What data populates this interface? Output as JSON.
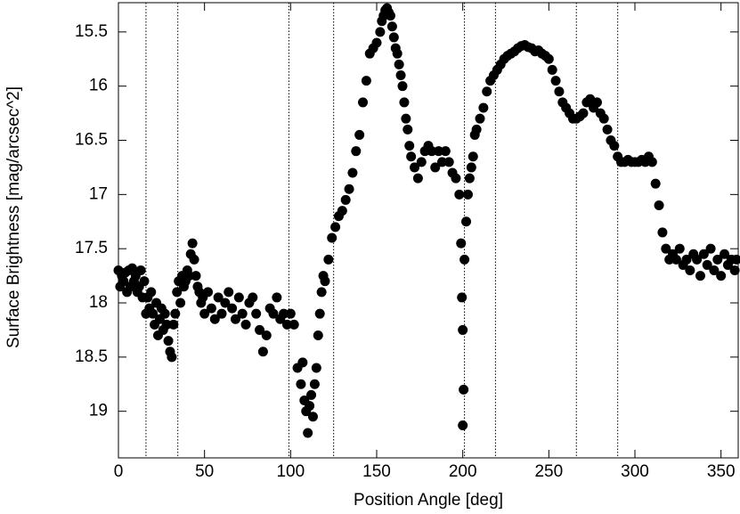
{
  "chart_data": {
    "type": "scatter",
    "xlabel": "Position Angle [deg]",
    "ylabel": "Surface Brightness [mag/arcsec^2]",
    "color": "#000000",
    "xlim": [
      0,
      360
    ],
    "ylim": [
      19.43,
      15.23
    ],
    "xticks": [
      0,
      50,
      100,
      150,
      200,
      250,
      300,
      350
    ],
    "yticks": [
      15.5,
      16,
      16.5,
      17,
      17.5,
      18,
      18.5,
      19
    ],
    "vlines": [
      16,
      34.5,
      99,
      125,
      201,
      219,
      266,
      290
    ],
    "x": [
      0,
      1,
      2,
      3,
      4,
      5,
      6,
      7,
      8,
      9,
      10,
      11,
      12,
      13,
      14,
      15,
      16,
      17,
      18,
      19,
      20,
      21,
      22,
      23,
      24,
      25,
      26,
      27,
      28,
      29,
      30,
      31,
      32,
      33,
      34,
      35,
      36,
      37,
      38,
      39,
      40,
      41,
      42,
      43,
      44,
      45,
      46,
      47,
      48,
      49,
      50,
      52,
      54,
      56,
      58,
      60,
      62,
      64,
      66,
      68,
      70,
      72,
      74,
      76,
      78,
      80,
      82,
      84,
      86,
      88,
      90,
      92,
      94,
      96,
      98,
      100,
      102,
      104,
      106,
      107,
      108,
      109,
      110,
      111,
      112,
      113,
      114,
      115,
      116,
      117,
      118,
      119,
      120,
      122,
      124,
      126,
      128,
      130,
      132,
      134,
      136,
      138,
      140,
      142,
      144,
      146,
      148,
      150,
      152,
      153,
      154,
      155,
      156,
      157,
      158,
      159,
      160,
      161,
      162,
      163,
      164,
      165,
      166,
      167,
      168,
      169,
      170,
      172,
      174,
      176,
      178,
      180,
      182,
      184,
      186,
      188,
      190,
      192,
      194,
      196,
      198,
      199,
      199.5,
      200,
      200.5,
      200,
      201,
      202,
      203,
      204,
      205,
      206,
      207,
      208,
      210,
      212,
      214,
      216,
      218,
      220,
      222,
      224,
      226,
      228,
      230,
      232,
      234,
      236,
      238,
      240,
      242,
      244,
      246,
      248,
      250,
      252,
      254,
      256,
      258,
      260,
      262,
      264,
      266,
      268,
      270,
      272,
      274,
      276,
      278,
      280,
      282,
      284,
      286,
      288,
      290,
      292,
      294,
      296,
      298,
      300,
      302,
      304,
      306,
      308,
      310,
      312,
      314,
      316,
      318,
      320,
      322,
      324,
      326,
      328,
      330,
      332,
      334,
      336,
      338,
      340,
      342,
      344,
      346,
      348,
      350,
      352,
      354,
      356,
      358,
      359
    ],
    "values": [
      17.7,
      17.85,
      17.75,
      17.8,
      17.72,
      17.9,
      17.7,
      17.85,
      17.68,
      17.8,
      17.75,
      17.9,
      17.85,
      17.7,
      17.95,
      17.8,
      18.1,
      17.95,
      18.05,
      17.9,
      18.1,
      18.2,
      18.0,
      18.3,
      18.15,
      18.05,
      18.25,
      18.1,
      18.2,
      18.35,
      18.45,
      18.5,
      18.2,
      18.1,
      17.9,
      17.8,
      18.0,
      17.75,
      17.85,
      17.8,
      17.7,
      17.75,
      17.55,
      17.45,
      17.6,
      17.75,
      17.85,
      17.9,
      18.0,
      17.95,
      18.1,
      17.9,
      18.05,
      18.15,
      17.95,
      18.1,
      18.0,
      17.9,
      18.05,
      18.15,
      17.95,
      18.1,
      18.2,
      18.0,
      17.95,
      18.1,
      18.25,
      18.45,
      18.3,
      18.05,
      18.1,
      17.95,
      18.15,
      18.1,
      18.2,
      18.1,
      18.2,
      18.6,
      18.75,
      18.55,
      18.9,
      19.0,
      19.2,
      18.95,
      18.85,
      19.05,
      18.75,
      18.6,
      18.3,
      18.1,
      17.9,
      17.75,
      17.8,
      17.6,
      17.4,
      17.3,
      17.2,
      17.15,
      17.05,
      16.95,
      16.8,
      16.6,
      16.45,
      16.15,
      15.95,
      15.7,
      15.65,
      15.6,
      15.5,
      15.4,
      15.35,
      15.3,
      15.28,
      15.32,
      15.35,
      15.45,
      15.55,
      15.65,
      15.7,
      15.8,
      15.9,
      16.0,
      16.15,
      16.3,
      16.4,
      16.55,
      16.65,
      16.75,
      16.85,
      16.7,
      16.6,
      16.55,
      16.6,
      16.75,
      16.6,
      16.7,
      16.6,
      16.7,
      16.8,
      16.85,
      17.0,
      17.45,
      17.95,
      18.25,
      18.8,
      19.13,
      17.6,
      17.25,
      17.0,
      16.85,
      16.75,
      16.65,
      16.45,
      16.4,
      16.3,
      16.2,
      16.05,
      15.95,
      15.9,
      15.85,
      15.8,
      15.75,
      15.72,
      15.7,
      15.68,
      15.65,
      15.63,
      15.62,
      15.64,
      15.65,
      15.68,
      15.67,
      15.7,
      15.72,
      15.75,
      15.85,
      15.95,
      16.05,
      16.15,
      16.2,
      16.25,
      16.3,
      16.3,
      16.28,
      16.25,
      16.15,
      16.12,
      16.2,
      16.15,
      16.25,
      16.3,
      16.4,
      16.5,
      16.55,
      16.65,
      16.7,
      16.7,
      16.68,
      16.7,
      16.7,
      16.7,
      16.68,
      16.7,
      16.65,
      16.7,
      16.9,
      17.1,
      17.35,
      17.5,
      17.6,
      17.55,
      17.6,
      17.5,
      17.65,
      17.6,
      17.7,
      17.55,
      17.6,
      17.75,
      17.55,
      17.65,
      17.5,
      17.7,
      17.6,
      17.75,
      17.55,
      17.65,
      17.6,
      17.7,
      17.6
    ]
  }
}
